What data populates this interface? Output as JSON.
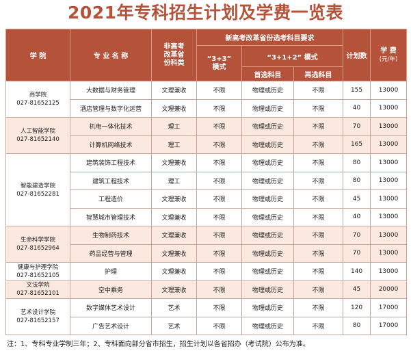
{
  "title": "2021年专科招生计划及学费一览表",
  "headers": {
    "college": "学 院",
    "major": "专 业 名 称",
    "category_line1": "非高考",
    "category_line2": "改革省",
    "category_line3": "份科类",
    "reform_group": "新高考改革省份选考科目要求",
    "mode33_line1": "“3+3”",
    "mode33_line2": "模式",
    "mode312": "“3+1+2” 模式",
    "first_subject": "首选科目",
    "second_subject": "再选科目",
    "plan": "计划数",
    "fee_line1": "学 费",
    "fee_line2": "(元/年)"
  },
  "colleges": [
    {
      "name": "商学院",
      "phone": "027-81652125"
    },
    {
      "name": "人工智能学院",
      "phone": "027-81652140"
    },
    {
      "name": "智能建造学院",
      "phone": "027-81652281"
    },
    {
      "name": "生命科学学院",
      "phone": "027-81652964"
    },
    {
      "name": "健康与护理学院",
      "phone": "027-81652105"
    },
    {
      "name": "文法学院",
      "phone": "027-81652101"
    },
    {
      "name": "艺术设计学院",
      "phone": "027-81652157"
    }
  ],
  "rows": [
    {
      "major": "大数据与财务管理",
      "category": "文理兼收",
      "mode33": "不限",
      "first": "物理或历史",
      "second": "不限",
      "plan": "155",
      "fee": "13000"
    },
    {
      "major": "酒店管理与数字化运营",
      "category": "文理兼收",
      "mode33": "不限",
      "first": "物理或历史",
      "second": "不限",
      "plan": "40",
      "fee": "13000"
    },
    {
      "major": "机电一体化技术",
      "category": "理工",
      "mode33": "不限",
      "first": "物理或历史",
      "second": "不限",
      "plan": "70",
      "fee": "13000"
    },
    {
      "major": "计算机网络技术",
      "category": "理工",
      "mode33": "不限",
      "first": "物理或历史",
      "second": "不限",
      "plan": "165",
      "fee": "13000"
    },
    {
      "major": "建筑装饰工程技术",
      "category": "文理兼收",
      "mode33": "不限",
      "first": "物理或历史",
      "second": "不限",
      "plan": "80",
      "fee": "13000"
    },
    {
      "major": "建筑工程技术",
      "category": "理工",
      "mode33": "不限",
      "first": "物理或历史",
      "second": "不限",
      "plan": "80",
      "fee": "13000"
    },
    {
      "major": "工程造价",
      "category": "文理兼收",
      "mode33": "不限",
      "first": "物理或历史",
      "second": "不限",
      "plan": "45",
      "fee": "13000"
    },
    {
      "major": "智慧城市管理技术",
      "category": "文理兼收",
      "mode33": "不限",
      "first": "物理或历史",
      "second": "不限",
      "plan": "40",
      "fee": "13000"
    },
    {
      "major": "生物制药技术",
      "category": "文理兼收",
      "mode33": "不限",
      "first": "物理或历史",
      "second": "不限",
      "plan": "70",
      "fee": "13000"
    },
    {
      "major": "药品经营与管理",
      "category": "文理兼收",
      "mode33": "不限",
      "first": "物理或历史",
      "second": "不限",
      "plan": "70",
      "fee": "13000"
    },
    {
      "major": "护理",
      "category": "文理兼收",
      "mode33": "不限",
      "first": "物理或历史",
      "second": "不限",
      "plan": "140",
      "fee": "13000"
    },
    {
      "major": "空中乘务",
      "category": "文理兼收",
      "mode33": "不限",
      "first": "物理或历史",
      "second": "不限",
      "plan": "45",
      "fee": "20000"
    },
    {
      "major": "数字媒体艺术设计",
      "category": "艺术",
      "mode33": "不限",
      "first": "物理或历史",
      "second": "不限",
      "plan": "120",
      "fee": "17000"
    },
    {
      "major": "广告艺术设计",
      "category": "艺术",
      "mode33": "不限",
      "first": "物理或历史",
      "second": "不限",
      "plan": "80",
      "fee": "17000"
    }
  ],
  "note": "注：1、专科专业学制三年；2、专科面向部分省市招生，招生计划以各省招办（考试院）公布为准。",
  "colors": {
    "accent": "#b4523a",
    "tint": "#fbe9df",
    "border": "#c7a59a"
  }
}
